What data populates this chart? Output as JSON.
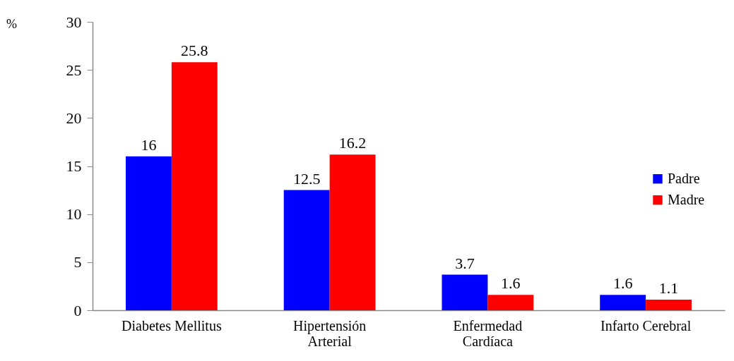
{
  "chart_data": {
    "type": "bar",
    "ylabel": "%",
    "categories": [
      "Diabetes Mellitus",
      "Hipertensión Arterial",
      "Enfermedad Cardíaca",
      "Infarto Cerebral"
    ],
    "series": [
      {
        "name": "Padre",
        "color": "#0000ff",
        "values": [
          16,
          12.5,
          3.7,
          1.6
        ]
      },
      {
        "name": "Madre",
        "color": "#ff0000",
        "values": [
          25.8,
          16.2,
          1.6,
          1.1
        ]
      }
    ],
    "ylim": [
      0,
      30
    ],
    "yticks": [
      0,
      5,
      10,
      15,
      20,
      25,
      30
    ],
    "data_labels": true,
    "legend": "right",
    "grid": false
  }
}
